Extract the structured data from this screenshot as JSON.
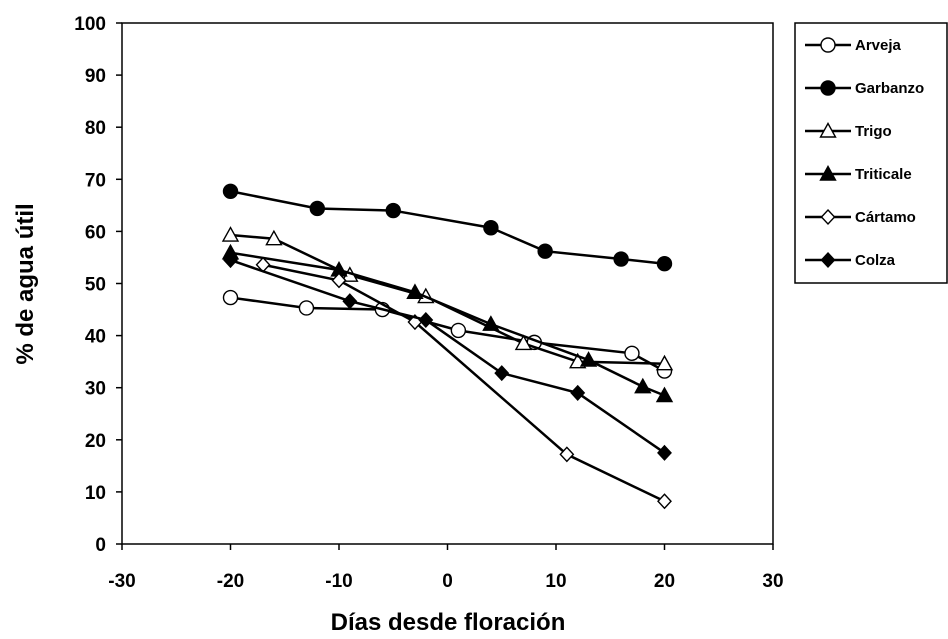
{
  "chart_data": {
    "type": "line",
    "title": "",
    "xlabel": "Días desde floración",
    "ylabel": "% de agua útil",
    "xlim": [
      -30,
      30
    ],
    "ylim": [
      0,
      100
    ],
    "x_ticks": [
      -30,
      -20,
      -10,
      0,
      10,
      20,
      30
    ],
    "y_ticks": [
      0,
      10,
      20,
      30,
      40,
      50,
      60,
      70,
      80,
      90,
      100
    ],
    "grid": false,
    "legend_position": "right",
    "series": [
      {
        "name": "Arveja",
        "marker": "circle",
        "filled": false,
        "points": [
          [
            -20,
            47.3
          ],
          [
            -13,
            45.3
          ],
          [
            -6,
            45
          ],
          [
            1,
            41
          ],
          [
            8,
            38.7
          ],
          [
            17,
            36.6
          ],
          [
            20,
            33.2
          ]
        ]
      },
      {
        "name": "Garbanzo",
        "marker": "circle",
        "filled": true,
        "points": [
          [
            -20,
            67.7
          ],
          [
            -12,
            64.4
          ],
          [
            -5,
            64
          ],
          [
            4,
            60.7
          ],
          [
            9,
            56.2
          ],
          [
            16,
            54.7
          ],
          [
            20,
            53.8
          ]
        ]
      },
      {
        "name": "Trigo",
        "marker": "triangle",
        "filled": false,
        "points": [
          [
            -20,
            59.3
          ],
          [
            -16,
            58.6
          ],
          [
            -9,
            51.6
          ],
          [
            -2,
            47.5
          ],
          [
            7,
            38.5
          ],
          [
            12,
            35
          ],
          [
            20,
            34.6
          ]
        ]
      },
      {
        "name": "Triticale",
        "marker": "triangle",
        "filled": true,
        "points": [
          [
            -20,
            55.9
          ],
          [
            -10,
            52.6
          ],
          [
            -3,
            48.3
          ],
          [
            4,
            42.2
          ],
          [
            13,
            35.3
          ],
          [
            18,
            30.2
          ],
          [
            20,
            28.5
          ]
        ]
      },
      {
        "name": "Cártamo",
        "marker": "diamond",
        "filled": false,
        "points": [
          [
            -17,
            53.6
          ],
          [
            -10,
            50.6
          ],
          [
            -3,
            42.6
          ],
          [
            11,
            17.2
          ],
          [
            20,
            8.2
          ]
        ]
      },
      {
        "name": "Colza",
        "marker": "diamond",
        "filled": true,
        "points": [
          [
            -20,
            54.5
          ],
          [
            -9,
            46.6
          ],
          [
            -2,
            43
          ],
          [
            5,
            32.8
          ],
          [
            12,
            29
          ],
          [
            20,
            17.5
          ]
        ]
      }
    ]
  }
}
